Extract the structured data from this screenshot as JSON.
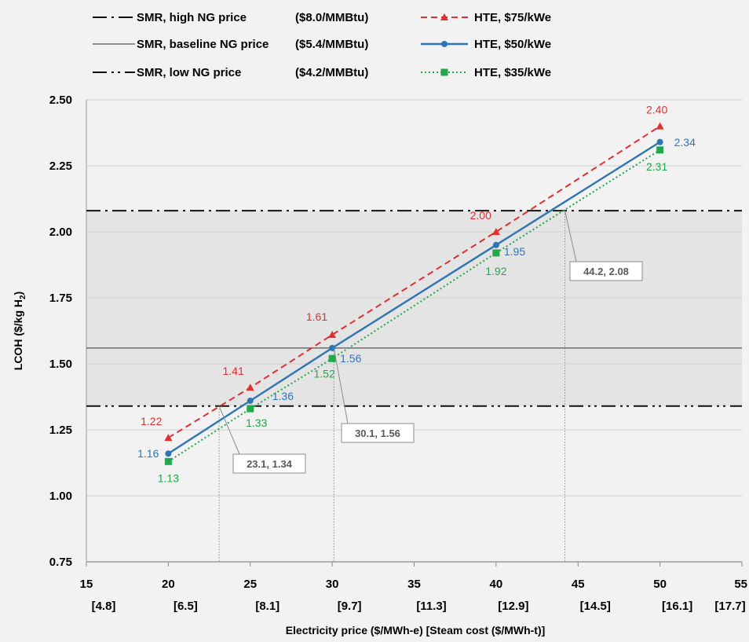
{
  "chart_data": {
    "type": "line",
    "xlabel": "Electricity price ($/MWh-e) [Steam cost ($/MWh-t)]",
    "ylabel_parts": [
      "LCOH ($/kg H",
      "2",
      ")"
    ],
    "xlim": [
      15,
      55
    ],
    "ylim": [
      0.75,
      2.5
    ],
    "x_ticks": [
      15,
      20,
      25,
      30,
      35,
      40,
      45,
      50,
      55
    ],
    "x_tick_labels": [
      "15",
      "20",
      "25",
      "30",
      "35",
      "40",
      "45",
      "50",
      "55"
    ],
    "x_secondary_labels": [
      "[4.8]",
      "[6.5]",
      "[8.1]",
      "[9.7]",
      "[11.3]",
      "[12.9]",
      "[14.5]",
      "[16.1]",
      "[17.7]"
    ],
    "y_ticks": [
      0.75,
      1.0,
      1.25,
      1.5,
      1.75,
      2.0,
      2.25,
      2.5
    ],
    "y_tick_labels": [
      "0.75",
      "1.00",
      "1.25",
      "1.50",
      "1.75",
      "2.00",
      "2.25",
      "2.50"
    ],
    "grid": "horizontal",
    "legend_position": "top",
    "shaded_band": [
      1.34,
      2.08
    ],
    "series": [
      {
        "name": "HTE, $75/kWe",
        "color": "#e03030",
        "style": "dashed",
        "marker": "triangle",
        "x": [
          20,
          25,
          30,
          40,
          50
        ],
        "y": [
          1.22,
          1.41,
          1.61,
          2.0,
          2.4
        ],
        "labels": [
          "1.22",
          "1.41",
          "1.61",
          "2.00",
          "2.40"
        ]
      },
      {
        "name": "HTE, $50/kWe",
        "color": "#2e75b6",
        "style": "solid",
        "marker": "circle",
        "x": [
          20,
          25,
          30,
          40,
          50
        ],
        "y": [
          1.16,
          1.36,
          1.56,
          1.95,
          2.34
        ],
        "labels": [
          "1.16",
          "1.36",
          "1.56",
          "1.95",
          "2.34"
        ]
      },
      {
        "name": "HTE, $35/kWe",
        "color": "#22a84a",
        "style": "dotted",
        "marker": "square",
        "x": [
          20,
          25,
          30,
          40,
          50
        ],
        "y": [
          1.13,
          1.33,
          1.52,
          1.92,
          2.31
        ],
        "labels": [
          "1.13",
          "1.33",
          "1.52",
          "1.92",
          "2.31"
        ]
      }
    ],
    "references": [
      {
        "name": "SMR, high NG price",
        "price": "($8.0/MMBtu)",
        "y": 2.08,
        "style": "dash-dot"
      },
      {
        "name": "SMR, baseline NG price",
        "price": "($5.4/MMBtu)",
        "y": 1.56,
        "style": "solid"
      },
      {
        "name": "SMR, low NG price",
        "price": "($4.2/MMBtu)",
        "y": 1.34,
        "style": "dash-dot-dot"
      }
    ],
    "callouts": [
      {
        "text": "23.1, 1.34",
        "x": 23.1,
        "y": 1.34
      },
      {
        "text": "30.1, 1.56",
        "x": 30.1,
        "y": 1.56
      },
      {
        "text": "44.2, 2.08",
        "x": 44.2,
        "y": 2.08
      }
    ]
  }
}
